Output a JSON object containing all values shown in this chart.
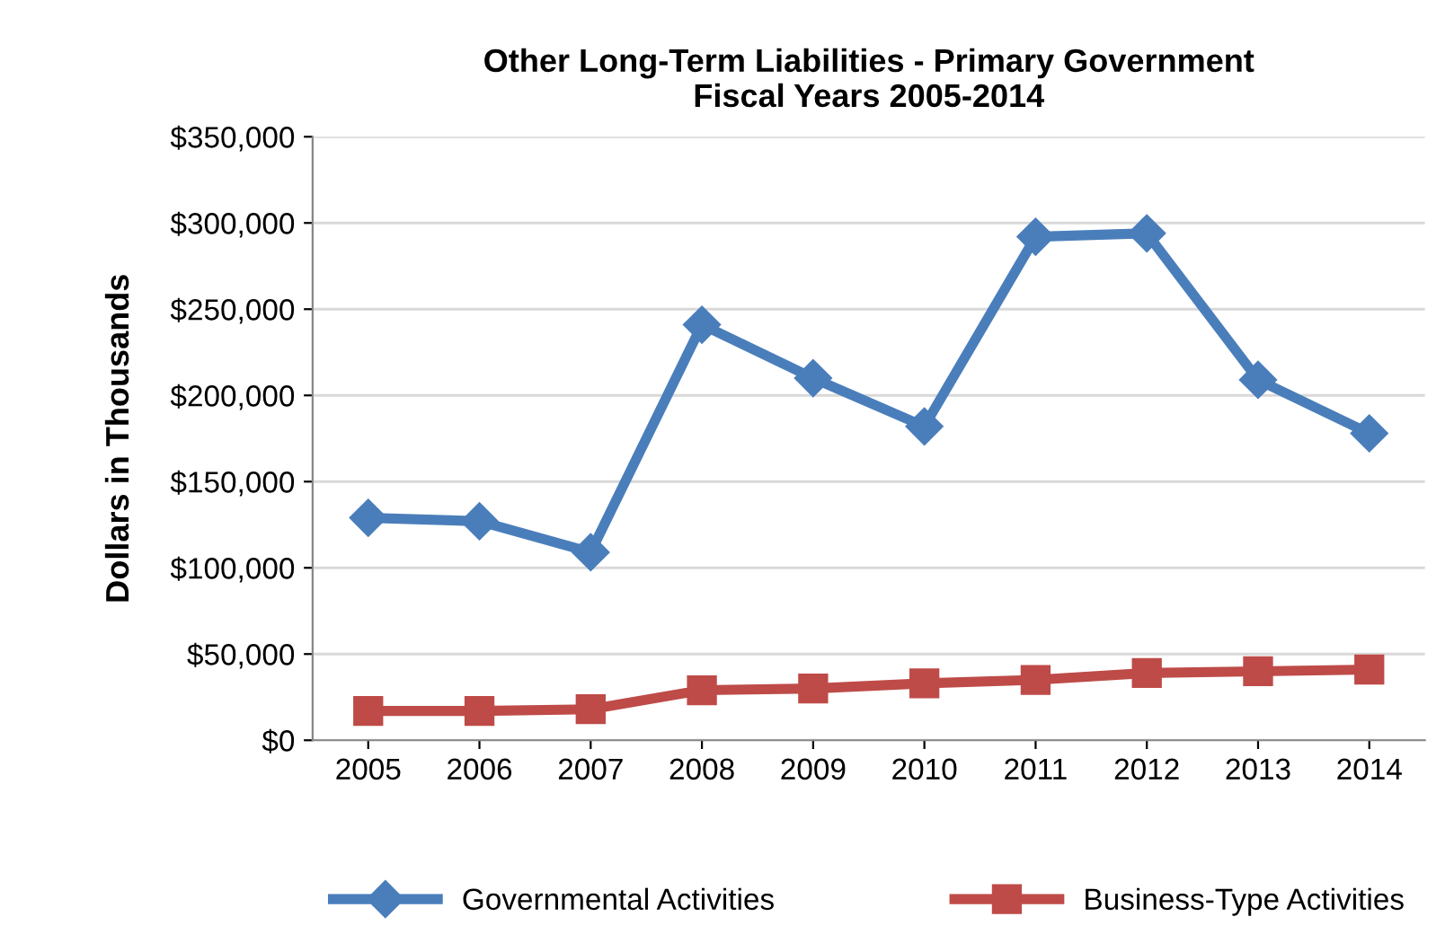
{
  "chart_data": {
    "type": "line",
    "title": "Other Long-Term Liabilities - Primary Government\nFiscal Years 2005-2014",
    "ylabel": "Dollars in Thousands",
    "categories": [
      "2005",
      "2006",
      "2007",
      "2008",
      "2009",
      "2010",
      "2011",
      "2012",
      "2013",
      "2014"
    ],
    "series": [
      {
        "name": "Governmental Activities",
        "color": "#4a7ebb",
        "marker": "diamond",
        "values": [
          129000,
          127000,
          109000,
          241000,
          210000,
          182000,
          292000,
          294000,
          209000,
          178000
        ]
      },
      {
        "name": "Business-Type Activities",
        "color": "#be4b48",
        "marker": "square",
        "values": [
          17000,
          17000,
          18000,
          29000,
          30000,
          33000,
          35000,
          39000,
          40000,
          41000
        ]
      }
    ],
    "ylim": [
      0,
      350000
    ],
    "yticks": [
      {
        "value": 0,
        "label": "$0"
      },
      {
        "value": 50000,
        "label": "$50,000"
      },
      {
        "value": 100000,
        "label": "$100,000"
      },
      {
        "value": 150000,
        "label": "$150,000"
      },
      {
        "value": 200000,
        "label": "$200,000"
      },
      {
        "value": 250000,
        "label": "$250,000"
      },
      {
        "value": 300000,
        "label": "$300,000"
      },
      {
        "value": 350000,
        "label": "$350,000"
      }
    ],
    "grid": "y",
    "legend": "bottom",
    "line_style": "solid"
  }
}
